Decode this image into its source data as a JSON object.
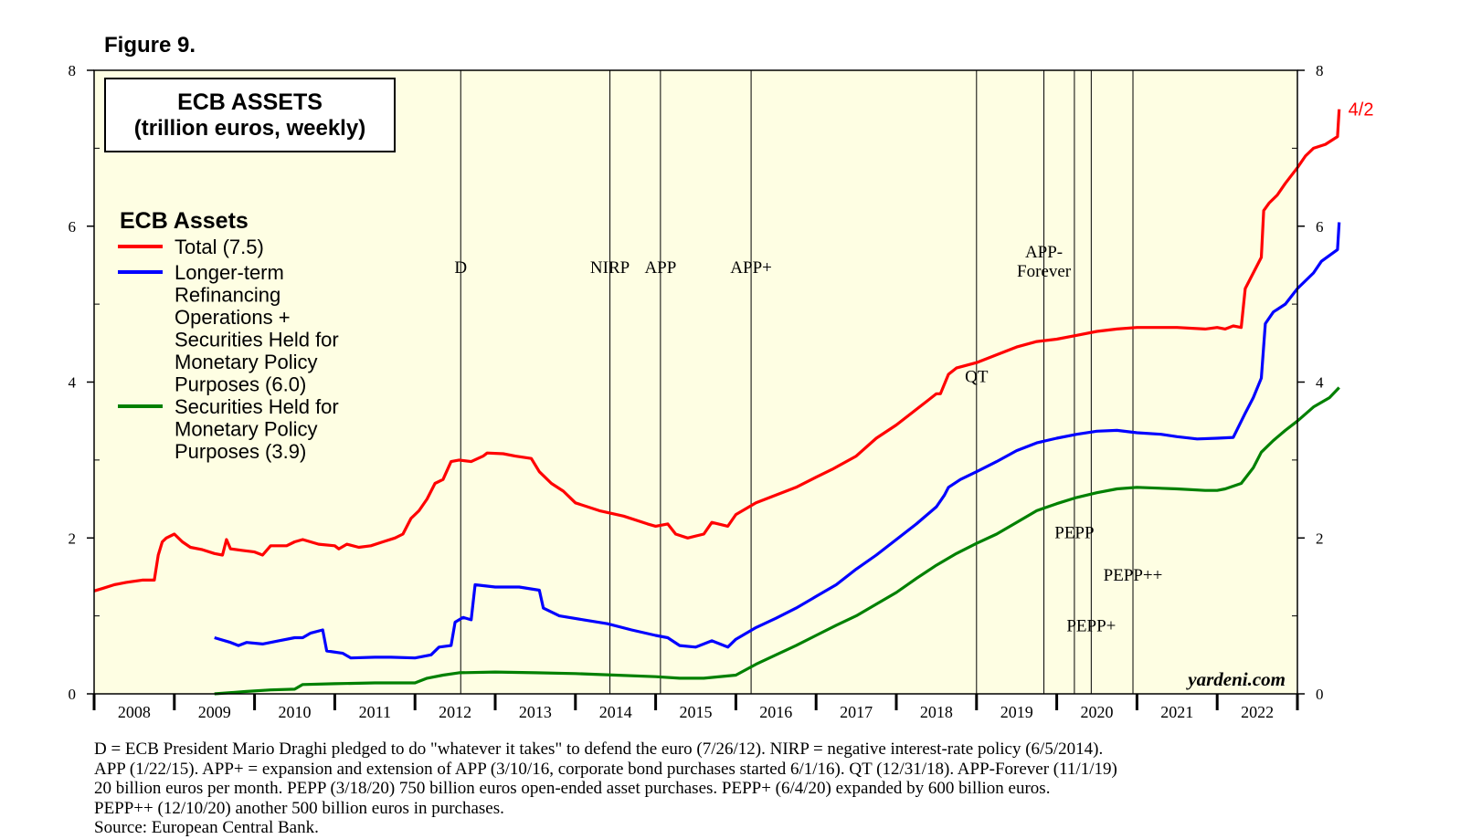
{
  "figure_label": "Figure 9.",
  "chart_data": {
    "type": "line",
    "title": "ECB ASSETS",
    "subtitle": "(trillion euros, weekly)",
    "legend_title": "ECB Assets",
    "xlim": [
      2008.0,
      2023.0
    ],
    "ylim": [
      0,
      8
    ],
    "y_ticks": [
      0,
      2,
      4,
      6,
      8
    ],
    "x_tick_labels": [
      "2008",
      "2009",
      "2010",
      "2011",
      "2012",
      "2013",
      "2014",
      "2015",
      "2016",
      "2017",
      "2018",
      "2019",
      "2020",
      "2021",
      "2022"
    ],
    "watermark": "yardeni.com",
    "end_label": "4/2",
    "colors": {
      "background": "#fefee3",
      "total": "#ff0000",
      "ltro": "#0000ff",
      "smp": "#008000"
    },
    "series": [
      {
        "name": "Total",
        "legend_lines": [
          "Total (7.5)"
        ],
        "color": "#ff0000",
        "points": [
          [
            2008.0,
            1.32
          ],
          [
            2008.1,
            1.35
          ],
          [
            2008.25,
            1.4
          ],
          [
            2008.4,
            1.43
          ],
          [
            2008.6,
            1.46
          ],
          [
            2008.75,
            1.46
          ],
          [
            2008.8,
            1.78
          ],
          [
            2008.85,
            1.95
          ],
          [
            2008.9,
            2.0
          ],
          [
            2009.0,
            2.05
          ],
          [
            2009.1,
            1.95
          ],
          [
            2009.2,
            1.88
          ],
          [
            2009.35,
            1.85
          ],
          [
            2009.5,
            1.8
          ],
          [
            2009.6,
            1.78
          ],
          [
            2009.65,
            1.98
          ],
          [
            2009.7,
            1.86
          ],
          [
            2009.85,
            1.84
          ],
          [
            2010.0,
            1.82
          ],
          [
            2010.1,
            1.78
          ],
          [
            2010.2,
            1.9
          ],
          [
            2010.4,
            1.9
          ],
          [
            2010.5,
            1.95
          ],
          [
            2010.6,
            1.98
          ],
          [
            2010.8,
            1.92
          ],
          [
            2011.0,
            1.9
          ],
          [
            2011.05,
            1.86
          ],
          [
            2011.15,
            1.92
          ],
          [
            2011.3,
            1.88
          ],
          [
            2011.45,
            1.9
          ],
          [
            2011.6,
            1.95
          ],
          [
            2011.75,
            2.0
          ],
          [
            2011.85,
            2.05
          ],
          [
            2011.95,
            2.25
          ],
          [
            2012.05,
            2.35
          ],
          [
            2012.15,
            2.5
          ],
          [
            2012.25,
            2.7
          ],
          [
            2012.35,
            2.75
          ],
          [
            2012.45,
            2.98
          ],
          [
            2012.55,
            3.0
          ],
          [
            2012.7,
            2.98
          ],
          [
            2012.85,
            3.05
          ],
          [
            2012.9,
            3.09
          ],
          [
            2013.1,
            3.08
          ],
          [
            2013.25,
            3.05
          ],
          [
            2013.45,
            3.02
          ],
          [
            2013.55,
            2.85
          ],
          [
            2013.7,
            2.7
          ],
          [
            2013.85,
            2.6
          ],
          [
            2014.0,
            2.45
          ],
          [
            2014.3,
            2.35
          ],
          [
            2014.6,
            2.28
          ],
          [
            2014.9,
            2.18
          ],
          [
            2015.0,
            2.15
          ],
          [
            2015.15,
            2.18
          ],
          [
            2015.25,
            2.05
          ],
          [
            2015.4,
            2.0
          ],
          [
            2015.6,
            2.05
          ],
          [
            2015.7,
            2.2
          ],
          [
            2015.9,
            2.15
          ],
          [
            2016.0,
            2.3
          ],
          [
            2016.25,
            2.45
          ],
          [
            2016.5,
            2.55
          ],
          [
            2016.75,
            2.65
          ],
          [
            2017.0,
            2.78
          ],
          [
            2017.2,
            2.88
          ],
          [
            2017.5,
            3.05
          ],
          [
            2017.75,
            3.28
          ],
          [
            2018.0,
            3.45
          ],
          [
            2018.25,
            3.65
          ],
          [
            2018.5,
            3.85
          ],
          [
            2018.55,
            3.85
          ],
          [
            2018.65,
            4.1
          ],
          [
            2018.75,
            4.18
          ],
          [
            2019.0,
            4.25
          ],
          [
            2019.25,
            4.35
          ],
          [
            2019.5,
            4.45
          ],
          [
            2019.75,
            4.52
          ],
          [
            2020.0,
            4.55
          ],
          [
            2020.25,
            4.6
          ],
          [
            2020.5,
            4.65
          ],
          [
            2020.75,
            4.68
          ],
          [
            2021.0,
            4.7
          ],
          [
            2021.5,
            4.7
          ],
          [
            2021.85,
            4.68
          ],
          [
            2022.0,
            4.7
          ],
          [
            2022.1,
            4.68
          ],
          [
            2022.2,
            4.72
          ],
          [
            2022.3,
            4.7
          ],
          [
            2022.35,
            5.2
          ],
          [
            2022.45,
            5.4
          ],
          [
            2022.55,
            5.6
          ],
          [
            2022.58,
            6.2
          ],
          [
            2022.65,
            6.3
          ],
          [
            2022.75,
            6.4
          ],
          [
            2022.85,
            6.55
          ],
          [
            2023.0,
            6.75
          ],
          [
            2023.1,
            6.9
          ],
          [
            2023.2,
            7.0
          ],
          [
            2023.35,
            7.05
          ],
          [
            2023.5,
            7.15
          ],
          [
            2023.52,
            7.5
          ]
        ]
      },
      {
        "name": "Longer-term Refinancing Operations + Securities Held for Monetary Policy Purposes",
        "legend_lines": [
          "Longer-term",
          "Refinancing",
          "Operations +",
          "Securities Held for",
          "Monetary Policy",
          "Purposes (6.0)"
        ],
        "color": "#0000ff",
        "points": [
          [
            2009.5,
            0.72
          ],
          [
            2009.7,
            0.66
          ],
          [
            2009.8,
            0.62
          ],
          [
            2009.9,
            0.66
          ],
          [
            2010.1,
            0.64
          ],
          [
            2010.3,
            0.68
          ],
          [
            2010.5,
            0.72
          ],
          [
            2010.6,
            0.72
          ],
          [
            2010.7,
            0.78
          ],
          [
            2010.85,
            0.82
          ],
          [
            2010.9,
            0.55
          ],
          [
            2011.1,
            0.52
          ],
          [
            2011.2,
            0.46
          ],
          [
            2011.5,
            0.47
          ],
          [
            2011.7,
            0.47
          ],
          [
            2012.0,
            0.46
          ],
          [
            2012.2,
            0.5
          ],
          [
            2012.3,
            0.6
          ],
          [
            2012.45,
            0.62
          ],
          [
            2012.5,
            0.92
          ],
          [
            2012.6,
            0.98
          ],
          [
            2012.7,
            0.95
          ],
          [
            2012.75,
            1.4
          ],
          [
            2013.0,
            1.37
          ],
          [
            2013.3,
            1.37
          ],
          [
            2013.55,
            1.33
          ],
          [
            2013.6,
            1.1
          ],
          [
            2013.8,
            1.0
          ],
          [
            2014.1,
            0.95
          ],
          [
            2014.4,
            0.9
          ],
          [
            2014.7,
            0.82
          ],
          [
            2015.0,
            0.75
          ],
          [
            2015.15,
            0.72
          ],
          [
            2015.3,
            0.62
          ],
          [
            2015.5,
            0.6
          ],
          [
            2015.7,
            0.68
          ],
          [
            2015.9,
            0.6
          ],
          [
            2016.0,
            0.7
          ],
          [
            2016.25,
            0.85
          ],
          [
            2016.5,
            0.97
          ],
          [
            2016.75,
            1.1
          ],
          [
            2017.0,
            1.25
          ],
          [
            2017.25,
            1.4
          ],
          [
            2017.5,
            1.6
          ],
          [
            2017.75,
            1.78
          ],
          [
            2018.0,
            1.98
          ],
          [
            2018.25,
            2.18
          ],
          [
            2018.5,
            2.4
          ],
          [
            2018.6,
            2.55
          ],
          [
            2018.65,
            2.65
          ],
          [
            2018.8,
            2.75
          ],
          [
            2019.0,
            2.85
          ],
          [
            2019.25,
            2.98
          ],
          [
            2019.5,
            3.12
          ],
          [
            2019.75,
            3.22
          ],
          [
            2020.0,
            3.28
          ],
          [
            2020.25,
            3.33
          ],
          [
            2020.5,
            3.37
          ],
          [
            2020.75,
            3.38
          ],
          [
            2021.0,
            3.35
          ],
          [
            2021.3,
            3.33
          ],
          [
            2021.5,
            3.3
          ],
          [
            2021.75,
            3.27
          ],
          [
            2022.0,
            3.28
          ],
          [
            2022.2,
            3.29
          ],
          [
            2022.35,
            3.6
          ],
          [
            2022.45,
            3.8
          ],
          [
            2022.55,
            4.05
          ],
          [
            2022.6,
            4.75
          ],
          [
            2022.7,
            4.9
          ],
          [
            2022.85,
            5.0
          ],
          [
            2023.0,
            5.2
          ],
          [
            2023.2,
            5.4
          ],
          [
            2023.3,
            5.55
          ],
          [
            2023.5,
            5.7
          ],
          [
            2023.52,
            6.05
          ]
        ]
      },
      {
        "name": "Securities Held for Monetary Policy Purposes",
        "legend_lines": [
          "Securities Held for",
          "Monetary Policy",
          "Purposes (3.9)"
        ],
        "color": "#008000",
        "points": [
          [
            2009.5,
            0.0
          ],
          [
            2009.9,
            0.03
          ],
          [
            2010.2,
            0.05
          ],
          [
            2010.5,
            0.06
          ],
          [
            2010.6,
            0.12
          ],
          [
            2011.0,
            0.13
          ],
          [
            2011.5,
            0.14
          ],
          [
            2012.0,
            0.14
          ],
          [
            2012.15,
            0.2
          ],
          [
            2012.35,
            0.24
          ],
          [
            2012.55,
            0.27
          ],
          [
            2013.0,
            0.28
          ],
          [
            2013.5,
            0.27
          ],
          [
            2014.0,
            0.26
          ],
          [
            2014.5,
            0.24
          ],
          [
            2015.0,
            0.22
          ],
          [
            2015.3,
            0.2
          ],
          [
            2015.6,
            0.2
          ],
          [
            2016.0,
            0.24
          ],
          [
            2016.25,
            0.38
          ],
          [
            2016.5,
            0.5
          ],
          [
            2016.75,
            0.62
          ],
          [
            2017.0,
            0.75
          ],
          [
            2017.25,
            0.88
          ],
          [
            2017.5,
            1.0
          ],
          [
            2017.75,
            1.15
          ],
          [
            2018.0,
            1.3
          ],
          [
            2018.25,
            1.48
          ],
          [
            2018.5,
            1.65
          ],
          [
            2018.75,
            1.8
          ],
          [
            2019.0,
            1.93
          ],
          [
            2019.25,
            2.05
          ],
          [
            2019.5,
            2.2
          ],
          [
            2019.75,
            2.35
          ],
          [
            2020.0,
            2.44
          ],
          [
            2020.25,
            2.52
          ],
          [
            2020.5,
            2.58
          ],
          [
            2020.75,
            2.63
          ],
          [
            2021.0,
            2.65
          ],
          [
            2021.5,
            2.63
          ],
          [
            2021.85,
            2.61
          ],
          [
            2022.0,
            2.61
          ],
          [
            2022.1,
            2.63
          ],
          [
            2022.3,
            2.7
          ],
          [
            2022.45,
            2.9
          ],
          [
            2022.55,
            3.1
          ],
          [
            2022.7,
            3.25
          ],
          [
            2022.85,
            3.38
          ],
          [
            2023.0,
            3.5
          ],
          [
            2023.2,
            3.68
          ],
          [
            2023.4,
            3.8
          ],
          [
            2023.52,
            3.93
          ]
        ]
      }
    ],
    "events": [
      {
        "label_lines": [
          "D"
        ],
        "x": 2012.57,
        "label_y": 5.4
      },
      {
        "label_lines": [
          "NIRP"
        ],
        "x": 2014.43,
        "label_y": 5.4
      },
      {
        "label_lines": [
          "APP"
        ],
        "x": 2015.06,
        "label_y": 5.4
      },
      {
        "label_lines": [
          "APP+"
        ],
        "x": 2016.19,
        "label_y": 5.4
      },
      {
        "label_lines": [
          "QT"
        ],
        "x": 2019.0,
        "label_y": 4.0
      },
      {
        "label_lines": [
          "APP-",
          "Forever"
        ],
        "x": 2019.84,
        "label_y": 5.6
      },
      {
        "label_lines": [
          "PEPP"
        ],
        "x": 2020.22,
        "label_y": 2.0
      },
      {
        "label_lines": [
          "PEPP+"
        ],
        "x": 2020.43,
        "label_y": 0.8
      },
      {
        "label_lines": [
          "PEPP++"
        ],
        "x": 2020.95,
        "label_y": 1.45
      }
    ]
  },
  "footnote_lines": [
    "D = ECB President Mario Draghi pledged to do \"whatever it takes\" to defend the euro (7/26/12). NIRP = negative interest-rate policy (6/5/2014).",
    "APP (1/22/15). APP+ = expansion and extension of APP (3/10/16, corporate bond purchases started 6/1/16). QT (12/31/18). APP-Forever (11/1/19)",
    "20 billion euros per month. PEPP (3/18/20) 750 billion euros open-ended asset purchases. PEPP+ (6/4/20) expanded by 600 billion euros.",
    "PEPP++ (12/10/20) another 500 billion euros in purchases.",
    "Source: European Central Bank."
  ]
}
